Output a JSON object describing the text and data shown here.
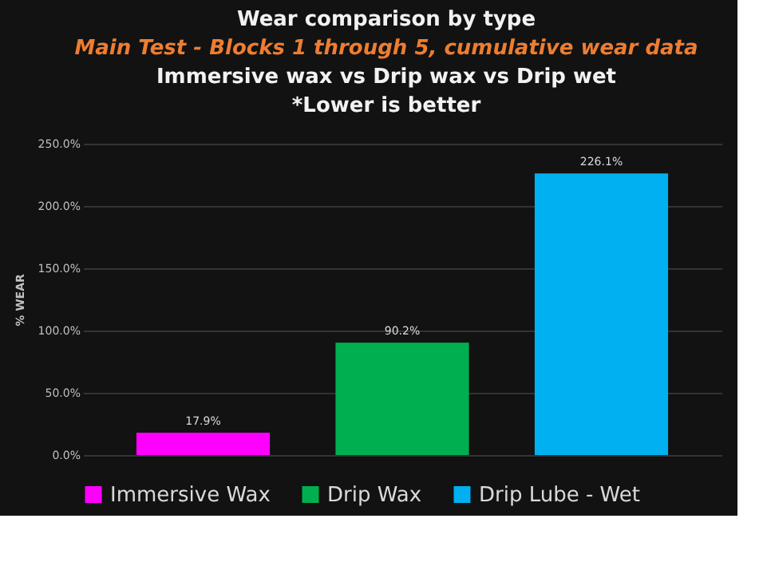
{
  "chart_data": {
    "type": "bar",
    "title": "Wear comparison by type",
    "subtitle": "Main Test - Blocks 1 through 5, cumulative wear data",
    "annotations": [
      "Immersive wax vs Drip wax vs Drip wet",
      "*Lower is better"
    ],
    "ylabel": "% WEAR",
    "categories": [
      null
    ],
    "series": [
      {
        "name": "Immersive Wax",
        "color": "#ff00ff",
        "values": [
          17.9
        ],
        "value_labels": [
          "17.9%"
        ]
      },
      {
        "name": "Drip Wax",
        "color": "#00b050",
        "values": [
          90.2
        ],
        "value_labels": [
          "90.2%"
        ]
      },
      {
        "name": "Drip Lube - Wet",
        "color": "#00b0f0",
        "values": [
          226.1
        ],
        "value_labels": [
          "226.1%"
        ]
      }
    ],
    "ylim": [
      0,
      250
    ],
    "yticks": [
      {
        "value": 0,
        "label": "0.0%"
      },
      {
        "value": 50,
        "label": "50.0%"
      },
      {
        "value": 100,
        "label": "100.0%"
      },
      {
        "value": 150,
        "label": "150.0%"
      },
      {
        "value": 200,
        "label": "200.0%"
      },
      {
        "value": 250,
        "label": "250.0%"
      }
    ],
    "grid": "y",
    "legend": "bottom",
    "tick_labels": "y"
  }
}
